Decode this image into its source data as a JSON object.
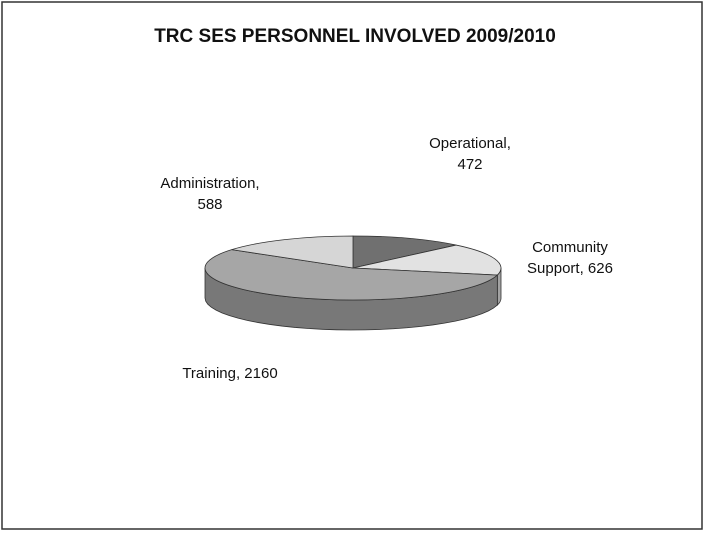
{
  "chart_data": {
    "type": "pie3d",
    "title": "TRC SES PERSONNEL INVOLVED 2009/2010",
    "values": [
      472,
      626,
      2160,
      588
    ],
    "value_labels": [
      [
        "Operational,",
        "472"
      ],
      [
        "Community",
        "Support, 626"
      ],
      [
        "Training, 2160"
      ],
      [
        "Administration,",
        "588"
      ]
    ],
    "colors": [
      "#707070",
      "#e2e2e2",
      "#a6a6a6",
      "#d6d6d6"
    ]
  }
}
